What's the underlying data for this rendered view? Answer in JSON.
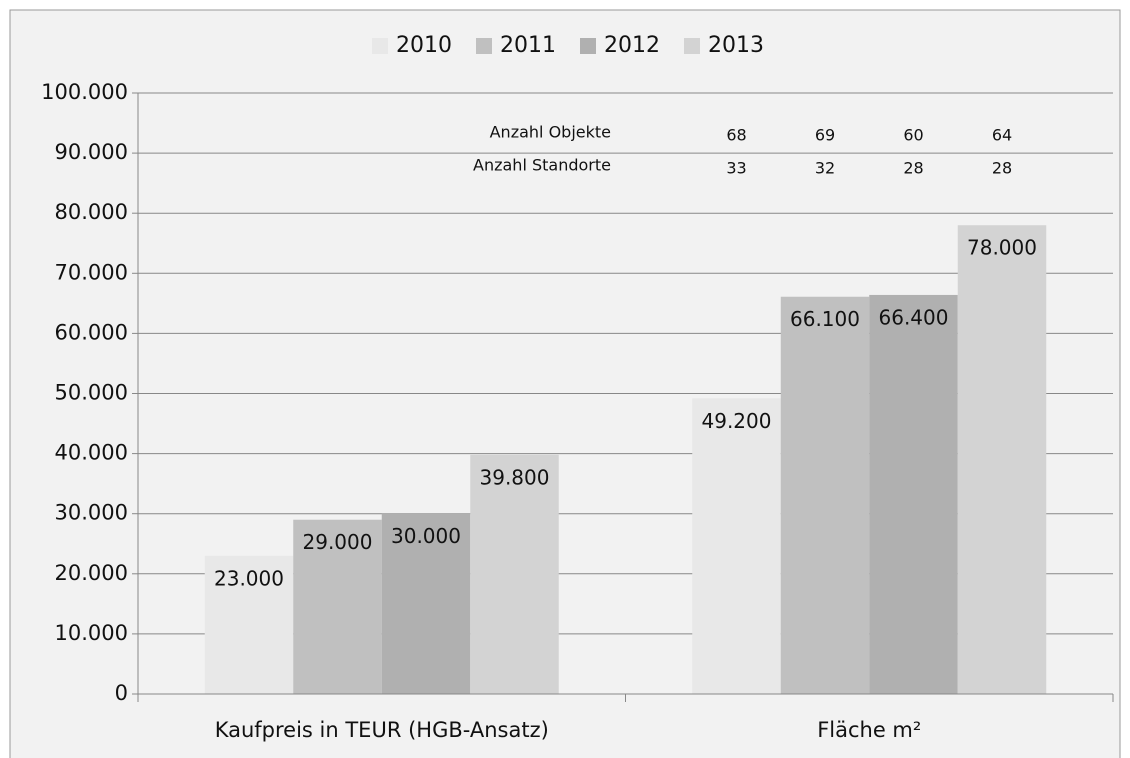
{
  "chart_data": {
    "type": "bar",
    "categories": [
      "Kaufpreis in TEUR (HGB-Ansatz)",
      "Fläche m²"
    ],
    "series": [
      {
        "name": "2010",
        "color": "#e8e8e8",
        "values": [
          23000,
          49200
        ],
        "value_labels": [
          "23.000",
          "49.200"
        ]
      },
      {
        "name": "2011",
        "color": "#c0c0c0",
        "values": [
          29000,
          66100
        ],
        "value_labels": [
          "29.000",
          "66.100"
        ]
      },
      {
        "name": "2012",
        "color": "#b0b0b0",
        "values": [
          30000,
          66400
        ],
        "value_labels": [
          "30.000",
          "66.400"
        ]
      },
      {
        "name": "2013",
        "color": "#d3d3d3",
        "values": [
          39800,
          78000
        ],
        "value_labels": [
          "39.800",
          "78.000"
        ]
      }
    ],
    "ylim": [
      0,
      100000
    ],
    "yticks": [
      0,
      {
        "value": 10000,
        "label": "10.000"
      },
      {
        "value": 20000,
        "label": "20.000"
      },
      {
        "value": 30000,
        "label": "30.000"
      },
      {
        "value": 40000,
        "label": "40.000"
      },
      {
        "value": 50000,
        "label": "50.000"
      },
      {
        "value": 60000,
        "label": "60.000"
      },
      {
        "value": 70000,
        "label": "70.000"
      },
      {
        "value": 80000,
        "label": "80.000"
      },
      {
        "value": 90000,
        "label": "90.000"
      },
      {
        "value": 100000,
        "label": "100.000"
      }
    ],
    "grid": true,
    "legend": "top",
    "annotations": [
      {
        "label": "Anzahl Objekte",
        "values": [
          68,
          69,
          60,
          64
        ]
      },
      {
        "label": "Anzahl Standorte",
        "values": [
          33,
          32,
          28,
          28
        ]
      }
    ]
  }
}
